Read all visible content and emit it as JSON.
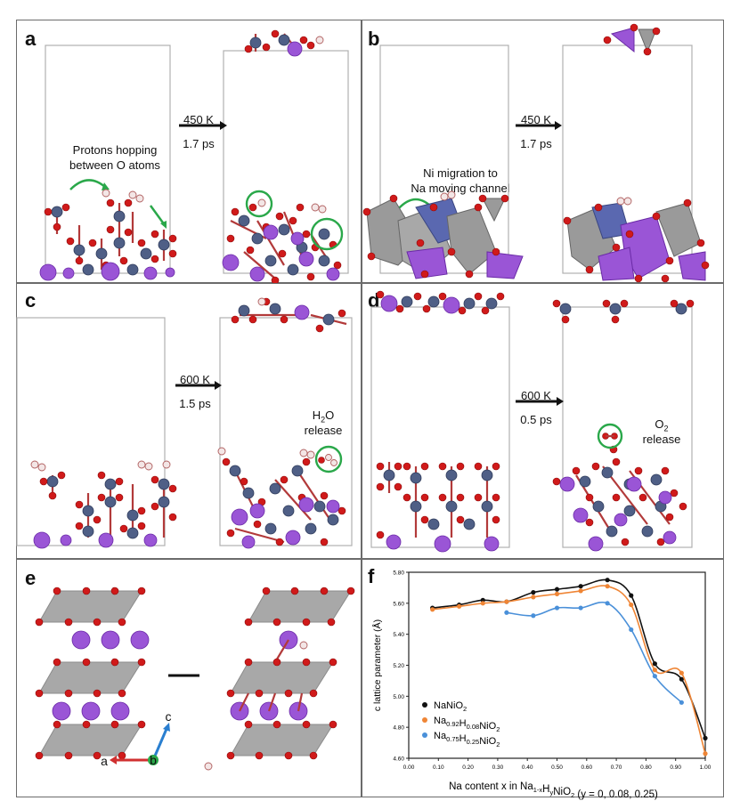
{
  "panels": {
    "a": {
      "label": "a",
      "temp": "450 K",
      "time": "1.7 ps",
      "note_line1": "Protons hopping",
      "note_line2": "between O atoms"
    },
    "b": {
      "label": "b",
      "temp": "450 K",
      "time": "1.7 ps",
      "note_line1": "Ni migration to",
      "note_line2": "Na moving channel"
    },
    "c": {
      "label": "c",
      "temp": "600 K",
      "time": "1.5 ps",
      "release_species": "H",
      "release_sub": "2",
      "release_species2": "O",
      "release_word": "release"
    },
    "d": {
      "label": "d",
      "temp": "600 K",
      "time": "0.5 ps",
      "release_species": "O",
      "release_sub": "2",
      "release_word": "release"
    },
    "e": {
      "label": "e",
      "axis_a": "a",
      "axis_b": "b",
      "axis_c": "c"
    },
    "f": {
      "label": "f"
    }
  },
  "colors": {
    "ni": "#4f5f86",
    "o": "#d01a1a",
    "h": "#f3e6e6",
    "na": "#9a55d6",
    "highlight": "#2aa84a",
    "octahedra": "#9a9a9a"
  },
  "chart_data": {
    "type": "line",
    "xlabel_prefix": "Na content x in Na",
    "xlabel_suffix": "(y = 0, 0.08, 0.25)",
    "ylabel": "c lattice parameter (Å)",
    "xlim": [
      0.0,
      1.0
    ],
    "ylim": [
      4.6,
      5.8
    ],
    "x_ticks": [
      "0.00",
      "0.10",
      "0.20",
      "0.30",
      "0.40",
      "0.50",
      "0.60",
      "0.70",
      "0.80",
      "0.90",
      "1.00"
    ],
    "y_ticks": [
      "4.60",
      "4.80",
      "5.00",
      "5.20",
      "5.40",
      "5.60",
      "5.80"
    ],
    "series": [
      {
        "name": "NaNiO2",
        "label_main": "NaNiO",
        "label_sub": "2",
        "color": "#111111",
        "x": [
          0.08,
          0.17,
          0.25,
          0.33,
          0.42,
          0.5,
          0.58,
          0.67,
          0.75,
          0.83,
          0.92,
          1.0
        ],
        "y": [
          5.57,
          5.59,
          5.62,
          5.61,
          5.67,
          5.69,
          5.71,
          5.75,
          5.65,
          5.21,
          5.11,
          4.73
        ]
      },
      {
        "name": "Na0.92H0.08NiO2",
        "label_main": "Na",
        "label_sub1": "0.92",
        "label_mid": "H",
        "label_sub2": "0.08",
        "label_end": "NiO",
        "label_sub3": "2",
        "color": "#ef8535",
        "x": [
          0.08,
          0.17,
          0.25,
          0.33,
          0.42,
          0.5,
          0.58,
          0.67,
          0.75,
          0.83,
          0.92,
          1.0
        ],
        "y": [
          5.56,
          5.58,
          5.6,
          5.61,
          5.64,
          5.66,
          5.68,
          5.71,
          5.59,
          5.17,
          5.15,
          4.63
        ]
      },
      {
        "name": "Na0.75H0.25NiO2",
        "label_main": "Na",
        "label_sub1": "0.75",
        "label_mid": "H",
        "label_sub2": "0.25",
        "label_end": "NiO",
        "label_sub3": "2",
        "color": "#4a90d9",
        "x": [
          0.33,
          0.42,
          0.5,
          0.58,
          0.67,
          0.75,
          0.83,
          0.92
        ],
        "y": [
          5.54,
          5.52,
          5.57,
          5.57,
          5.6,
          5.43,
          5.13,
          4.96
        ]
      }
    ]
  }
}
